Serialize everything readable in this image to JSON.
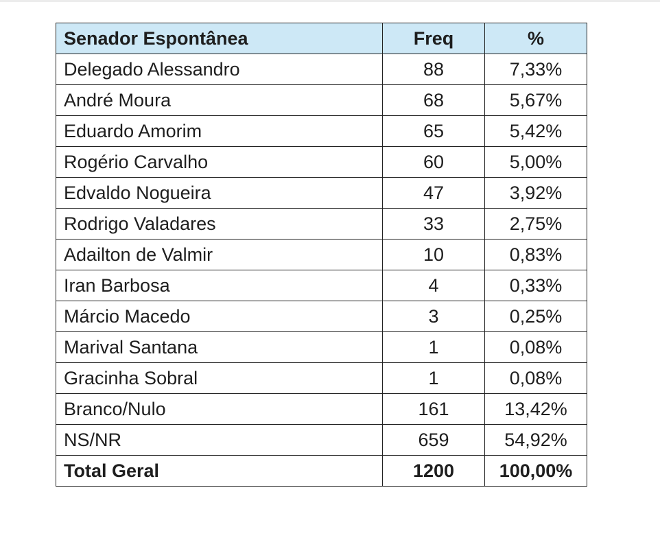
{
  "table": {
    "headers": {
      "name": "Senador Espontânea",
      "freq": "Freq",
      "pct": "%"
    },
    "rows": [
      {
        "name": "Delegado Alessandro",
        "freq": "88",
        "pct": "7,33%"
      },
      {
        "name": "André Moura",
        "freq": "68",
        "pct": "5,67%"
      },
      {
        "name": "Eduardo Amorim",
        "freq": "65",
        "pct": "5,42%"
      },
      {
        "name": "Rogério Carvalho",
        "freq": "60",
        "pct": "5,00%"
      },
      {
        "name": "Edvaldo Nogueira",
        "freq": "47",
        "pct": "3,92%"
      },
      {
        "name": "Rodrigo Valadares",
        "freq": "33",
        "pct": "2,75%"
      },
      {
        "name": "Adailton de Valmir",
        "freq": "10",
        "pct": "0,83%"
      },
      {
        "name": "Iran Barbosa",
        "freq": "4",
        "pct": "0,33%"
      },
      {
        "name": "Márcio Macedo",
        "freq": "3",
        "pct": "0,25%"
      },
      {
        "name": "Marival Santana",
        "freq": "1",
        "pct": "0,08%"
      },
      {
        "name": "Gracinha Sobral",
        "freq": "1",
        "pct": "0,08%"
      },
      {
        "name": "Branco/Nulo",
        "freq": "161",
        "pct": "13,42%"
      },
      {
        "name": "NS/NR",
        "freq": "659",
        "pct": "54,92%"
      }
    ],
    "total": {
      "name": "Total Geral",
      "freq": "1200",
      "pct": "100,00%"
    }
  },
  "colors": {
    "header_background": "#cde8f6",
    "border": "#222222",
    "text": "#1e1e1e"
  }
}
